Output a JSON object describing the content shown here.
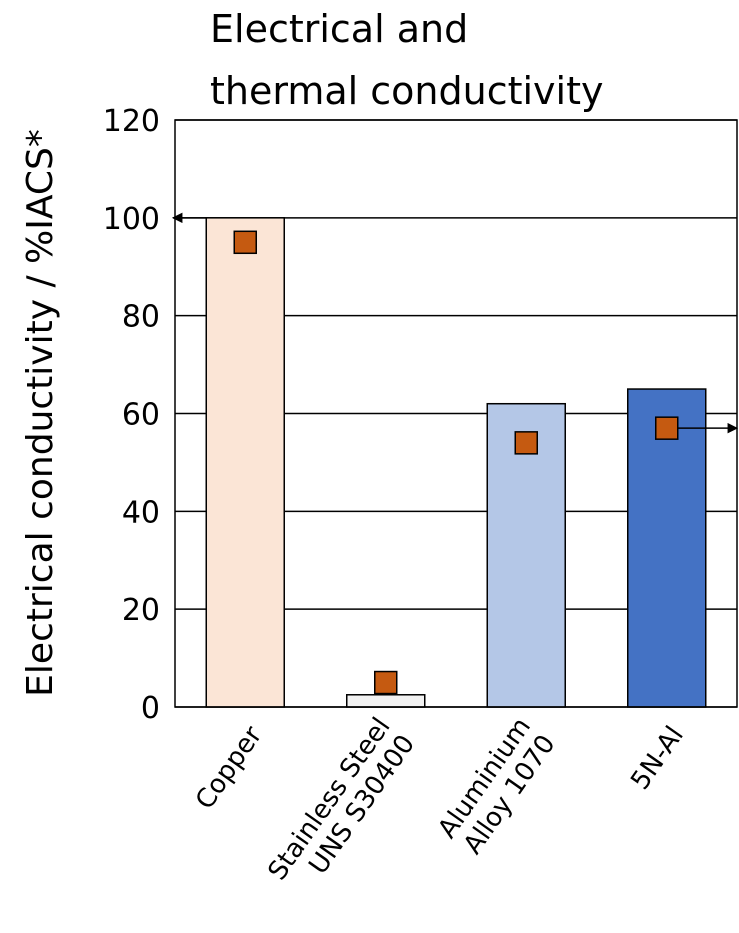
{
  "chart_data": {
    "type": "bar",
    "title_lines": [
      "Electrical and",
      "thermal conductivity"
    ],
    "xlabel": "",
    "ylabel": "Electrical conductivity / %IACS*",
    "ylim": [
      0,
      120
    ],
    "yticks": [
      0,
      20,
      40,
      60,
      80,
      100,
      120
    ],
    "grid": true,
    "categories": [
      [
        "Copper"
      ],
      [
        "Stainless Steel",
        "UNS S30400"
      ],
      [
        "Aluminium",
        "Alloy 1070"
      ],
      [
        "5N-Al"
      ]
    ],
    "series": [
      {
        "kind": "bar",
        "values": [
          100,
          2.5,
          62,
          65
        ],
        "colors": [
          "#fbe5d6",
          "#f2f2f2",
          "#b4c7e7",
          "#4472c4"
        ]
      },
      {
        "kind": "marker",
        "values": [
          95,
          5,
          54,
          57
        ],
        "color": "#c55a11"
      }
    ],
    "annotations": [
      {
        "type": "arrow",
        "points_to": "left axis",
        "from_category": 0,
        "at_value": 100
      },
      {
        "type": "arrow",
        "points_to": "right axis",
        "from_category": 3,
        "at_value": 57
      }
    ]
  }
}
